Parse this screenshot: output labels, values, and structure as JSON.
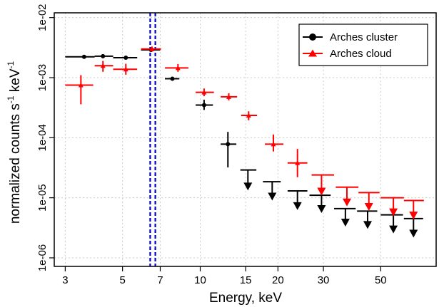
{
  "chart_data": {
    "type": "scatter",
    "xlabel": "Energy, keV",
    "ylabel_main": "normalized counts s",
    "ylabel_sup1": "-1",
    "ylabel_mid": " keV",
    "ylabel_sup2": "-1",
    "x_scale": "log",
    "y_scale": "log",
    "xlim": [
      2.72,
      82
    ],
    "ylim": [
      7.2e-07,
      0.012
    ],
    "x_ticks": [
      {
        "value": 3,
        "label": "3"
      },
      {
        "value": 5,
        "label": "5"
      },
      {
        "value": 7,
        "label": "7"
      },
      {
        "value": 10,
        "label": "10"
      },
      {
        "value": 15,
        "label": "15"
      },
      {
        "value": 20,
        "label": "20"
      },
      {
        "value": 30,
        "label": "30"
      },
      {
        "value": 50,
        "label": "50"
      }
    ],
    "y_ticks": [
      {
        "value": 1e-06,
        "label": "1e-06"
      },
      {
        "value": 1e-05,
        "label": "1e-05"
      },
      {
        "value": 0.0001,
        "label": "1e-04"
      },
      {
        "value": 0.001,
        "label": "1e-03"
      },
      {
        "value": 0.01,
        "label": "1e-02"
      }
    ],
    "grid": true,
    "legend_position": "top-right",
    "vlines": [
      6.4,
      6.7
    ],
    "vline_color": "#0000cc",
    "series": [
      {
        "name": "Arches cluster",
        "color": "#000000",
        "marker": "circle",
        "points": [
          {
            "x": 3.55,
            "xlo": 3.0,
            "xhi": 3.9,
            "y": 0.00222
          },
          {
            "x": 4.2,
            "xlo": 3.9,
            "xhi": 4.6,
            "y": 0.00228
          },
          {
            "x": 5.15,
            "xlo": 4.6,
            "xhi": 5.7,
            "y": 0.00215
          },
          {
            "x": 6.45,
            "xlo": 5.9,
            "xhi": 7.0,
            "y": 0.0029
          },
          {
            "x": 7.8,
            "xlo": 7.3,
            "xhi": 8.3,
            "y": 0.00096
          },
          {
            "x": 10.35,
            "xlo": 9.6,
            "xhi": 11.2,
            "y": 0.00035,
            "ylo": 0.00029,
            "yhi": 0.00043
          },
          {
            "x": 12.8,
            "xlo": 12.0,
            "xhi": 13.8,
            "y": 7.8e-05,
            "ylo": 3.2e-05,
            "yhi": 0.000125
          },
          {
            "x": 15.3,
            "xlo": 14.3,
            "xhi": 16.5,
            "y": 2.9e-05,
            "upper": true,
            "arrow_to": 1.4e-05
          },
          {
            "x": 19.0,
            "xlo": 17.5,
            "xhi": 20.5,
            "y": 1.85e-05,
            "upper": true,
            "arrow_to": 9.5e-06
          },
          {
            "x": 23.8,
            "xlo": 21.8,
            "xhi": 26.0,
            "y": 1.3e-05,
            "upper": true,
            "arrow_to": 6.6e-06
          },
          {
            "x": 29.5,
            "xlo": 26.5,
            "xhi": 32.0,
            "y": 1.1e-05,
            "upper": true,
            "arrow_to": 5.9e-06
          },
          {
            "x": 36.5,
            "xlo": 33.0,
            "xhi": 40.0,
            "y": 6.6e-06,
            "upper": true,
            "arrow_to": 3.5e-06
          },
          {
            "x": 44.5,
            "xlo": 40.5,
            "xhi": 48.5,
            "y": 6e-06,
            "upper": true,
            "arrow_to": 3.2e-06
          },
          {
            "x": 56.0,
            "xlo": 50.0,
            "xhi": 61.0,
            "y": 5.2e-06,
            "upper": true,
            "arrow_to": 2.7e-06
          },
          {
            "x": 67.0,
            "xlo": 61.5,
            "xhi": 73.0,
            "y": 4.5e-06,
            "upper": true,
            "arrow_to": 2.3e-06
          }
        ]
      },
      {
        "name": "Arches cloud",
        "color": "#ff0000",
        "marker": "triangle",
        "points": [
          {
            "x": 3.45,
            "xlo": 3.0,
            "xhi": 3.85,
            "y": 0.00075,
            "ylo": 0.00036,
            "yhi": 0.0011
          },
          {
            "x": 4.2,
            "xlo": 3.9,
            "xhi": 4.6,
            "y": 0.00158,
            "ylo": 0.00125,
            "yhi": 0.0019
          },
          {
            "x": 5.15,
            "xlo": 4.6,
            "xhi": 5.7,
            "y": 0.00138,
            "ylo": 0.00112,
            "yhi": 0.0017
          },
          {
            "x": 6.5,
            "xlo": 5.9,
            "xhi": 7.05,
            "y": 0.003,
            "ylo": 0.00275,
            "yhi": 0.0033
          },
          {
            "x": 8.2,
            "xlo": 7.3,
            "xhi": 9.0,
            "y": 0.00145,
            "ylo": 0.00125,
            "yhi": 0.00168
          },
          {
            "x": 10.35,
            "xlo": 9.6,
            "xhi": 11.3,
            "y": 0.00057,
            "ylo": 0.00049,
            "yhi": 0.00066
          },
          {
            "x": 12.9,
            "xlo": 12.0,
            "xhi": 13.9,
            "y": 0.00048,
            "ylo": 0.00042,
            "yhi": 0.00055
          },
          {
            "x": 15.4,
            "xlo": 14.4,
            "xhi": 16.6,
            "y": 0.000235,
            "ylo": 0.000195,
            "yhi": 0.000275
          },
          {
            "x": 19.2,
            "xlo": 17.8,
            "xhi": 21.0,
            "y": 7.8e-05,
            "ylo": 5.9e-05,
            "yhi": 0.000113
          },
          {
            "x": 23.8,
            "xlo": 21.8,
            "xhi": 26.0,
            "y": 3.8e-05,
            "ylo": 2.2e-05,
            "yhi": 6.5e-05
          },
          {
            "x": 29.5,
            "xlo": 27.0,
            "xhi": 33.0,
            "y": 2.4e-05,
            "upper": true,
            "arrow_to": 1.15e-05
          },
          {
            "x": 37.0,
            "xlo": 33.5,
            "xhi": 41.0,
            "y": 1.5e-05,
            "upper": true,
            "arrow_to": 7.6e-06
          },
          {
            "x": 45.0,
            "xlo": 41.0,
            "xhi": 49.5,
            "y": 1.22e-05,
            "upper": true,
            "arrow_to": 6.4e-06
          },
          {
            "x": 56.0,
            "xlo": 50.0,
            "xhi": 61.5,
            "y": 1e-05,
            "upper": true,
            "arrow_to": 5.2e-06
          },
          {
            "x": 67.0,
            "xlo": 61.5,
            "xhi": 73.5,
            "y": 9e-06,
            "upper": true,
            "arrow_to": 4.6e-06
          }
        ]
      }
    ]
  }
}
